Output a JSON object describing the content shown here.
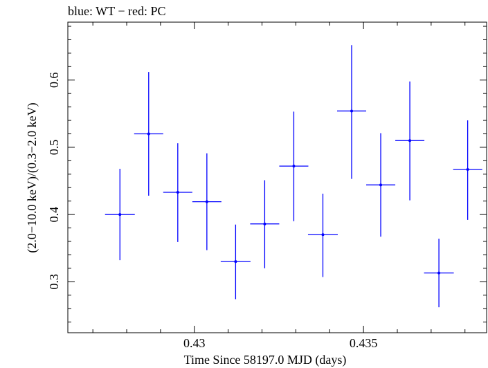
{
  "chart_data": {
    "type": "scatter",
    "title": "blue: WT − red: PC",
    "xlabel": "Time Since 58197.0 MJD (days)",
    "ylabel": "(2.0−10.0 keV)/(0.3−2.0 keV)",
    "xlim": [
      0.42626,
      0.43864
    ],
    "ylim": [
      0.2241,
      0.6862
    ],
    "x_ticks": [
      {
        "value": 0.43,
        "label": "0.43"
      },
      {
        "value": 0.435,
        "label": "0.435"
      }
    ],
    "y_ticks": [
      {
        "value": 0.3,
        "label": "0.3"
      },
      {
        "value": 0.4,
        "label": "0.4"
      },
      {
        "value": 0.5,
        "label": "0.5"
      },
      {
        "value": 0.6,
        "label": "0.6"
      }
    ],
    "grid": false,
    "series": [
      {
        "color": "#0000ff",
        "points": [
          {
            "x": 0.4278,
            "y": 0.4,
            "xerr": 0.00044,
            "ylo": 0.332,
            "yhi": 0.468
          },
          {
            "x": 0.42865,
            "y": 0.52,
            "xerr": 0.00043,
            "ylo": 0.428,
            "yhi": 0.612
          },
          {
            "x": 0.42951,
            "y": 0.433,
            "xerr": 0.00043,
            "ylo": 0.359,
            "yhi": 0.506
          },
          {
            "x": 0.43037,
            "y": 0.419,
            "xerr": 0.00043,
            "ylo": 0.347,
            "yhi": 0.491
          },
          {
            "x": 0.43122,
            "y": 0.33,
            "xerr": 0.00044,
            "ylo": 0.274,
            "yhi": 0.385
          },
          {
            "x": 0.43208,
            "y": 0.386,
            "xerr": 0.00043,
            "ylo": 0.32,
            "yhi": 0.451
          },
          {
            "x": 0.43294,
            "y": 0.472,
            "xerr": 0.00043,
            "ylo": 0.39,
            "yhi": 0.553
          },
          {
            "x": 0.4338,
            "y": 0.37,
            "xerr": 0.00044,
            "ylo": 0.307,
            "yhi": 0.431
          },
          {
            "x": 0.43465,
            "y": 0.554,
            "xerr": 0.00043,
            "ylo": 0.453,
            "yhi": 0.652
          },
          {
            "x": 0.43551,
            "y": 0.444,
            "xerr": 0.00043,
            "ylo": 0.367,
            "yhi": 0.521
          },
          {
            "x": 0.43637,
            "y": 0.51,
            "xerr": 0.00043,
            "ylo": 0.421,
            "yhi": 0.598
          },
          {
            "x": 0.43723,
            "y": 0.313,
            "xerr": 0.00044,
            "ylo": 0.262,
            "yhi": 0.364
          },
          {
            "x": 0.43808,
            "y": 0.467,
            "xerr": 0.00043,
            "ylo": 0.392,
            "yhi": 0.54
          }
        ]
      }
    ]
  }
}
